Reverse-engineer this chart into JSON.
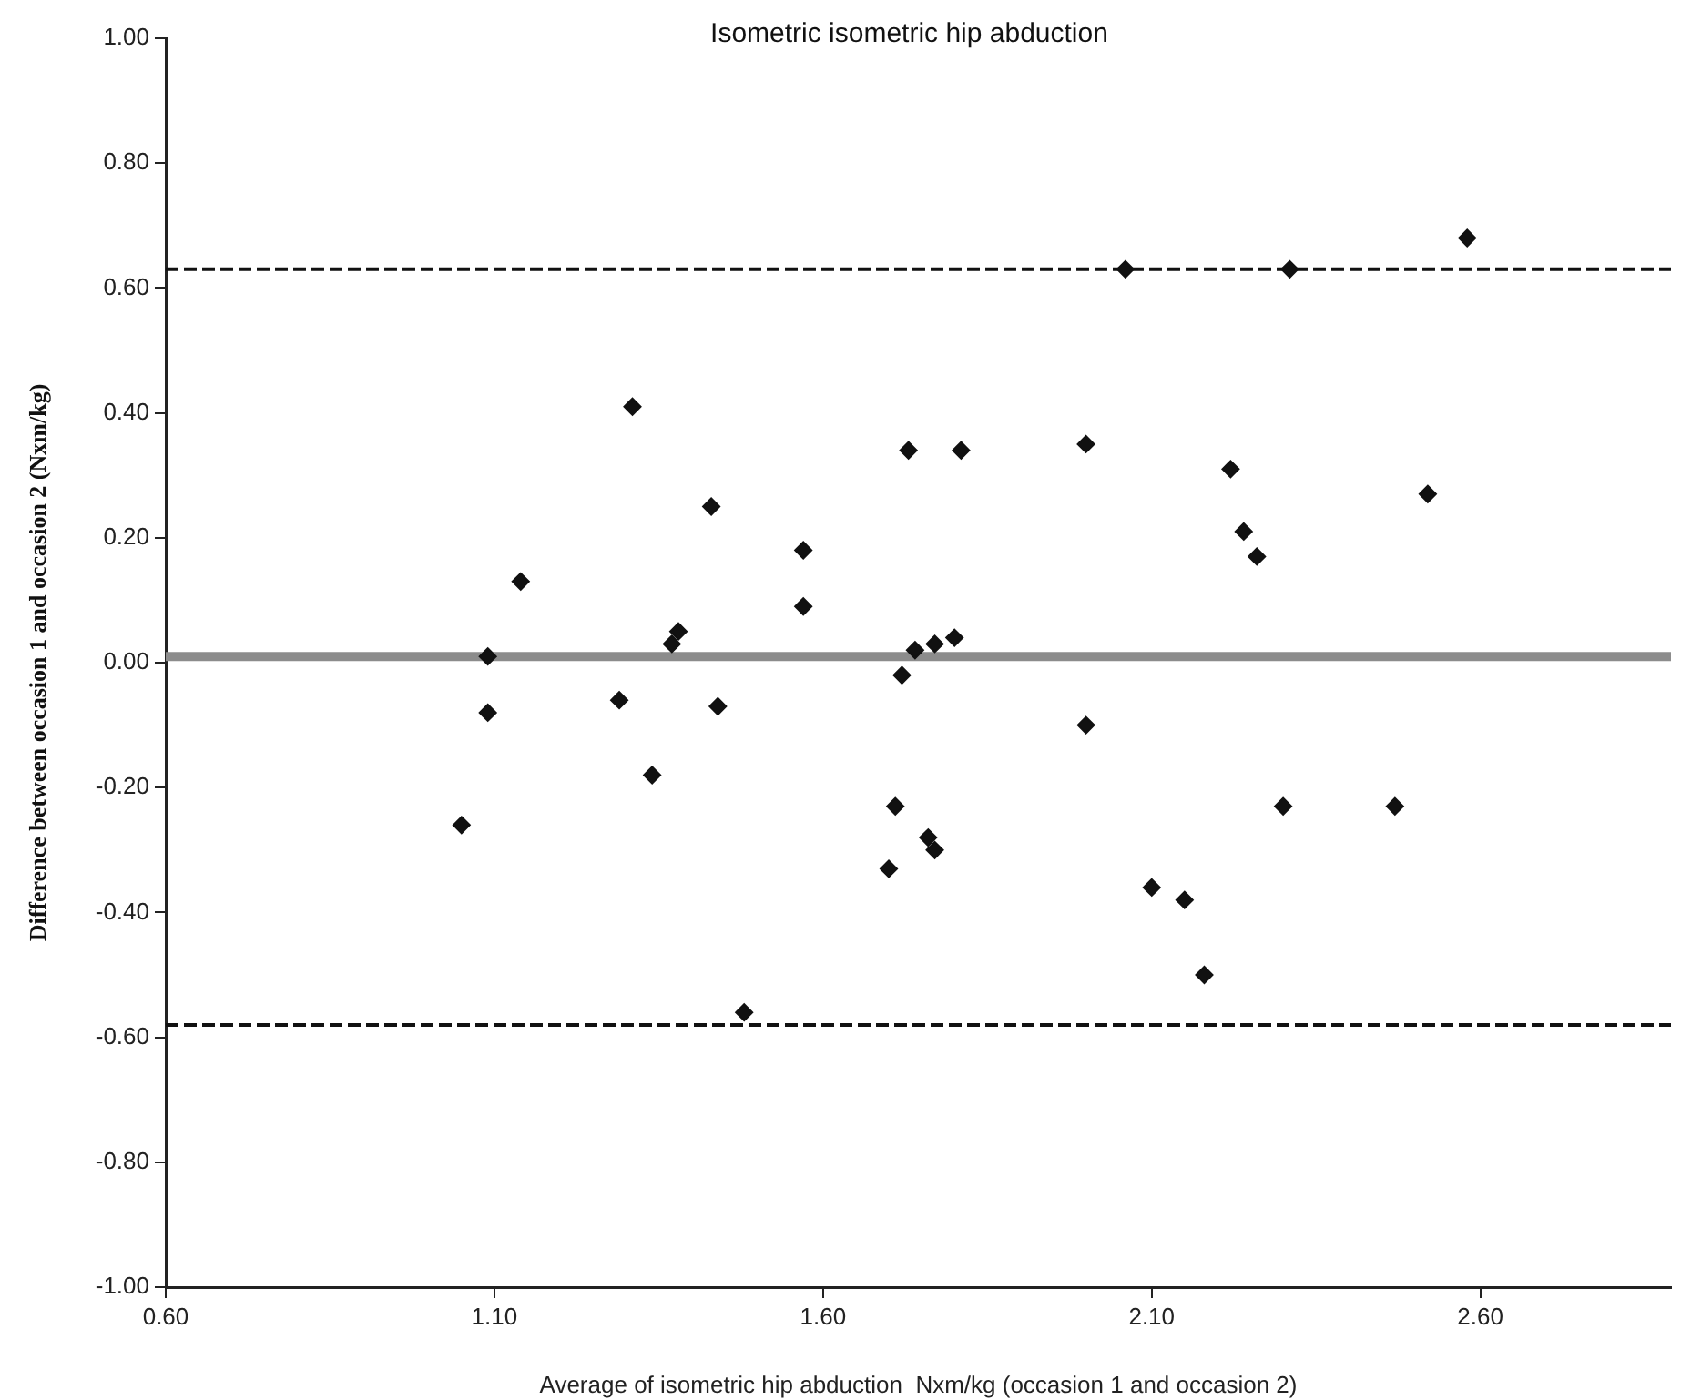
{
  "chart_data": {
    "type": "scatter",
    "title": "Isometric isometric hip abduction",
    "xlabel": "Average of isometric hip abduction  Nxm/kg (occasion 1 and occasion 2)",
    "ylabel": "Difference between occasion 1 and occasion 2 (Nxm/kg)",
    "xlim": [
      0.6,
      2.89
    ],
    "xticks": [
      {
        "value": 0.6,
        "label": "0.60"
      },
      {
        "value": 1.1,
        "label": "1.10"
      },
      {
        "value": 1.6,
        "label": "1.60"
      },
      {
        "value": 2.1,
        "label": "2.10"
      },
      {
        "value": 2.6,
        "label": "2.60"
      }
    ],
    "ylim": [
      -1,
      1
    ],
    "yticks": [
      {
        "value": -1,
        "label": "-1.00"
      },
      {
        "value": -0.8,
        "label": "-0.80"
      },
      {
        "value": -0.6,
        "label": "-0.60"
      },
      {
        "value": -0.4,
        "label": "-0.40"
      },
      {
        "value": -0.2,
        "label": "-0.20"
      },
      {
        "value": 0,
        "label": "0.00"
      },
      {
        "value": 0.2,
        "label": "0.20"
      },
      {
        "value": 0.4,
        "label": "0.40"
      },
      {
        "value": 0.6,
        "label": "0.60"
      },
      {
        "value": 0.8,
        "label": "0.80"
      },
      {
        "value": 1,
        "label": "1.00"
      }
    ],
    "grid": false,
    "legend": false,
    "marker": "diamond",
    "series": [
      {
        "color": "#111111",
        "x": [
          1.05,
          1.09,
          1.14,
          1.09,
          1.29,
          1.31,
          1.34,
          1.37,
          1.38,
          1.43,
          1.44,
          1.48,
          1.57,
          1.57,
          1.7,
          1.71,
          1.72,
          1.73,
          1.76,
          1.77,
          1.74,
          1.77,
          1.8,
          1.81,
          2.0,
          2.0,
          2.06,
          2.1,
          2.15,
          2.18,
          2.22,
          2.24,
          2.26,
          2.3,
          2.31,
          2.47,
          2.52,
          2.58
        ],
        "values": [
          -0.26,
          -0.08,
          0.13,
          0.01,
          -0.06,
          0.41,
          -0.18,
          0.03,
          0.05,
          0.25,
          -0.07,
          -0.56,
          0.18,
          0.09,
          -0.33,
          -0.23,
          -0.02,
          0.34,
          -0.28,
          -0.3,
          0.02,
          0.03,
          0.04,
          0.34,
          0.35,
          -0.1,
          0.63,
          -0.36,
          -0.38,
          -0.5,
          0.31,
          0.21,
          0.17,
          -0.23,
          0.63,
          -0.23,
          0.27,
          0.68
        ]
      }
    ],
    "ref_lines": [
      {
        "axis": "y",
        "value": 0.63,
        "color": "#111111",
        "line_style": "dashed"
      },
      {
        "axis": "y",
        "value": 0.01,
        "color": "#8c8c8c",
        "line_style": "solid"
      },
      {
        "axis": "y",
        "value": -0.58,
        "color": "#111111",
        "line_style": "dashed"
      }
    ]
  }
}
